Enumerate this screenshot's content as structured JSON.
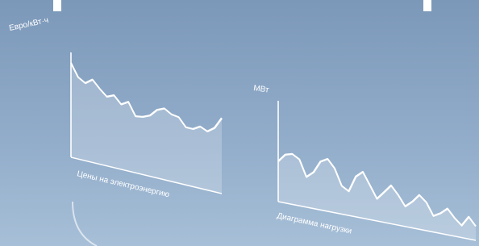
{
  "chart_data": [
    {
      "type": "line",
      "y_label": "Евро/кВт·ч",
      "x_label": "Цены на электроэнергию",
      "color": "#ffffff",
      "ylim": [
        0,
        100
      ],
      "values": [
        90,
        78,
        74,
        79,
        72,
        66,
        69,
        62,
        66,
        54,
        55,
        58,
        65,
        68,
        64,
        63,
        55,
        55,
        59,
        56,
        61,
        72
      ]
    },
    {
      "type": "line",
      "y_label": "МВт",
      "x_label": "Диаграмма нагрузки",
      "color": "#ffffff",
      "ylim": [
        0,
        100
      ],
      "values": [
        40,
        48,
        50,
        46,
        30,
        36,
        48,
        52,
        44,
        28,
        24,
        40,
        46,
        34,
        22,
        30,
        38,
        30,
        20,
        26,
        34,
        28,
        16,
        20,
        26,
        18,
        12,
        22,
        14
      ]
    }
  ]
}
